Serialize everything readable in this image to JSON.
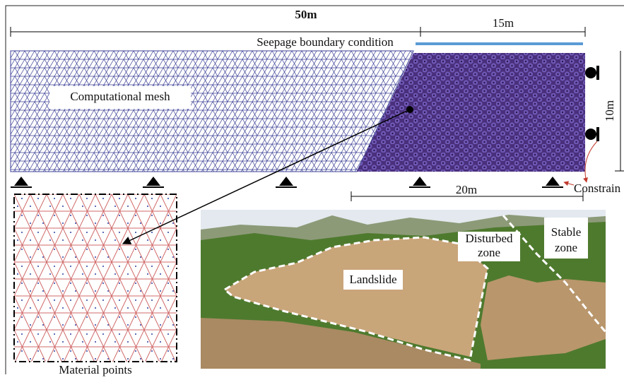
{
  "labels": {
    "total_length": "50m",
    "seepage_length": "15m",
    "seepage": "Seepage boundary condition",
    "mesh": "Computational mesh",
    "height": "10m",
    "base_length": "20m",
    "constraint": "Constrain",
    "material_points": "Material points",
    "landslide": "Landslide",
    "disturbed": [
      "Disturbed",
      "zone"
    ],
    "stable": [
      "Stable",
      "zone"
    ]
  }
}
